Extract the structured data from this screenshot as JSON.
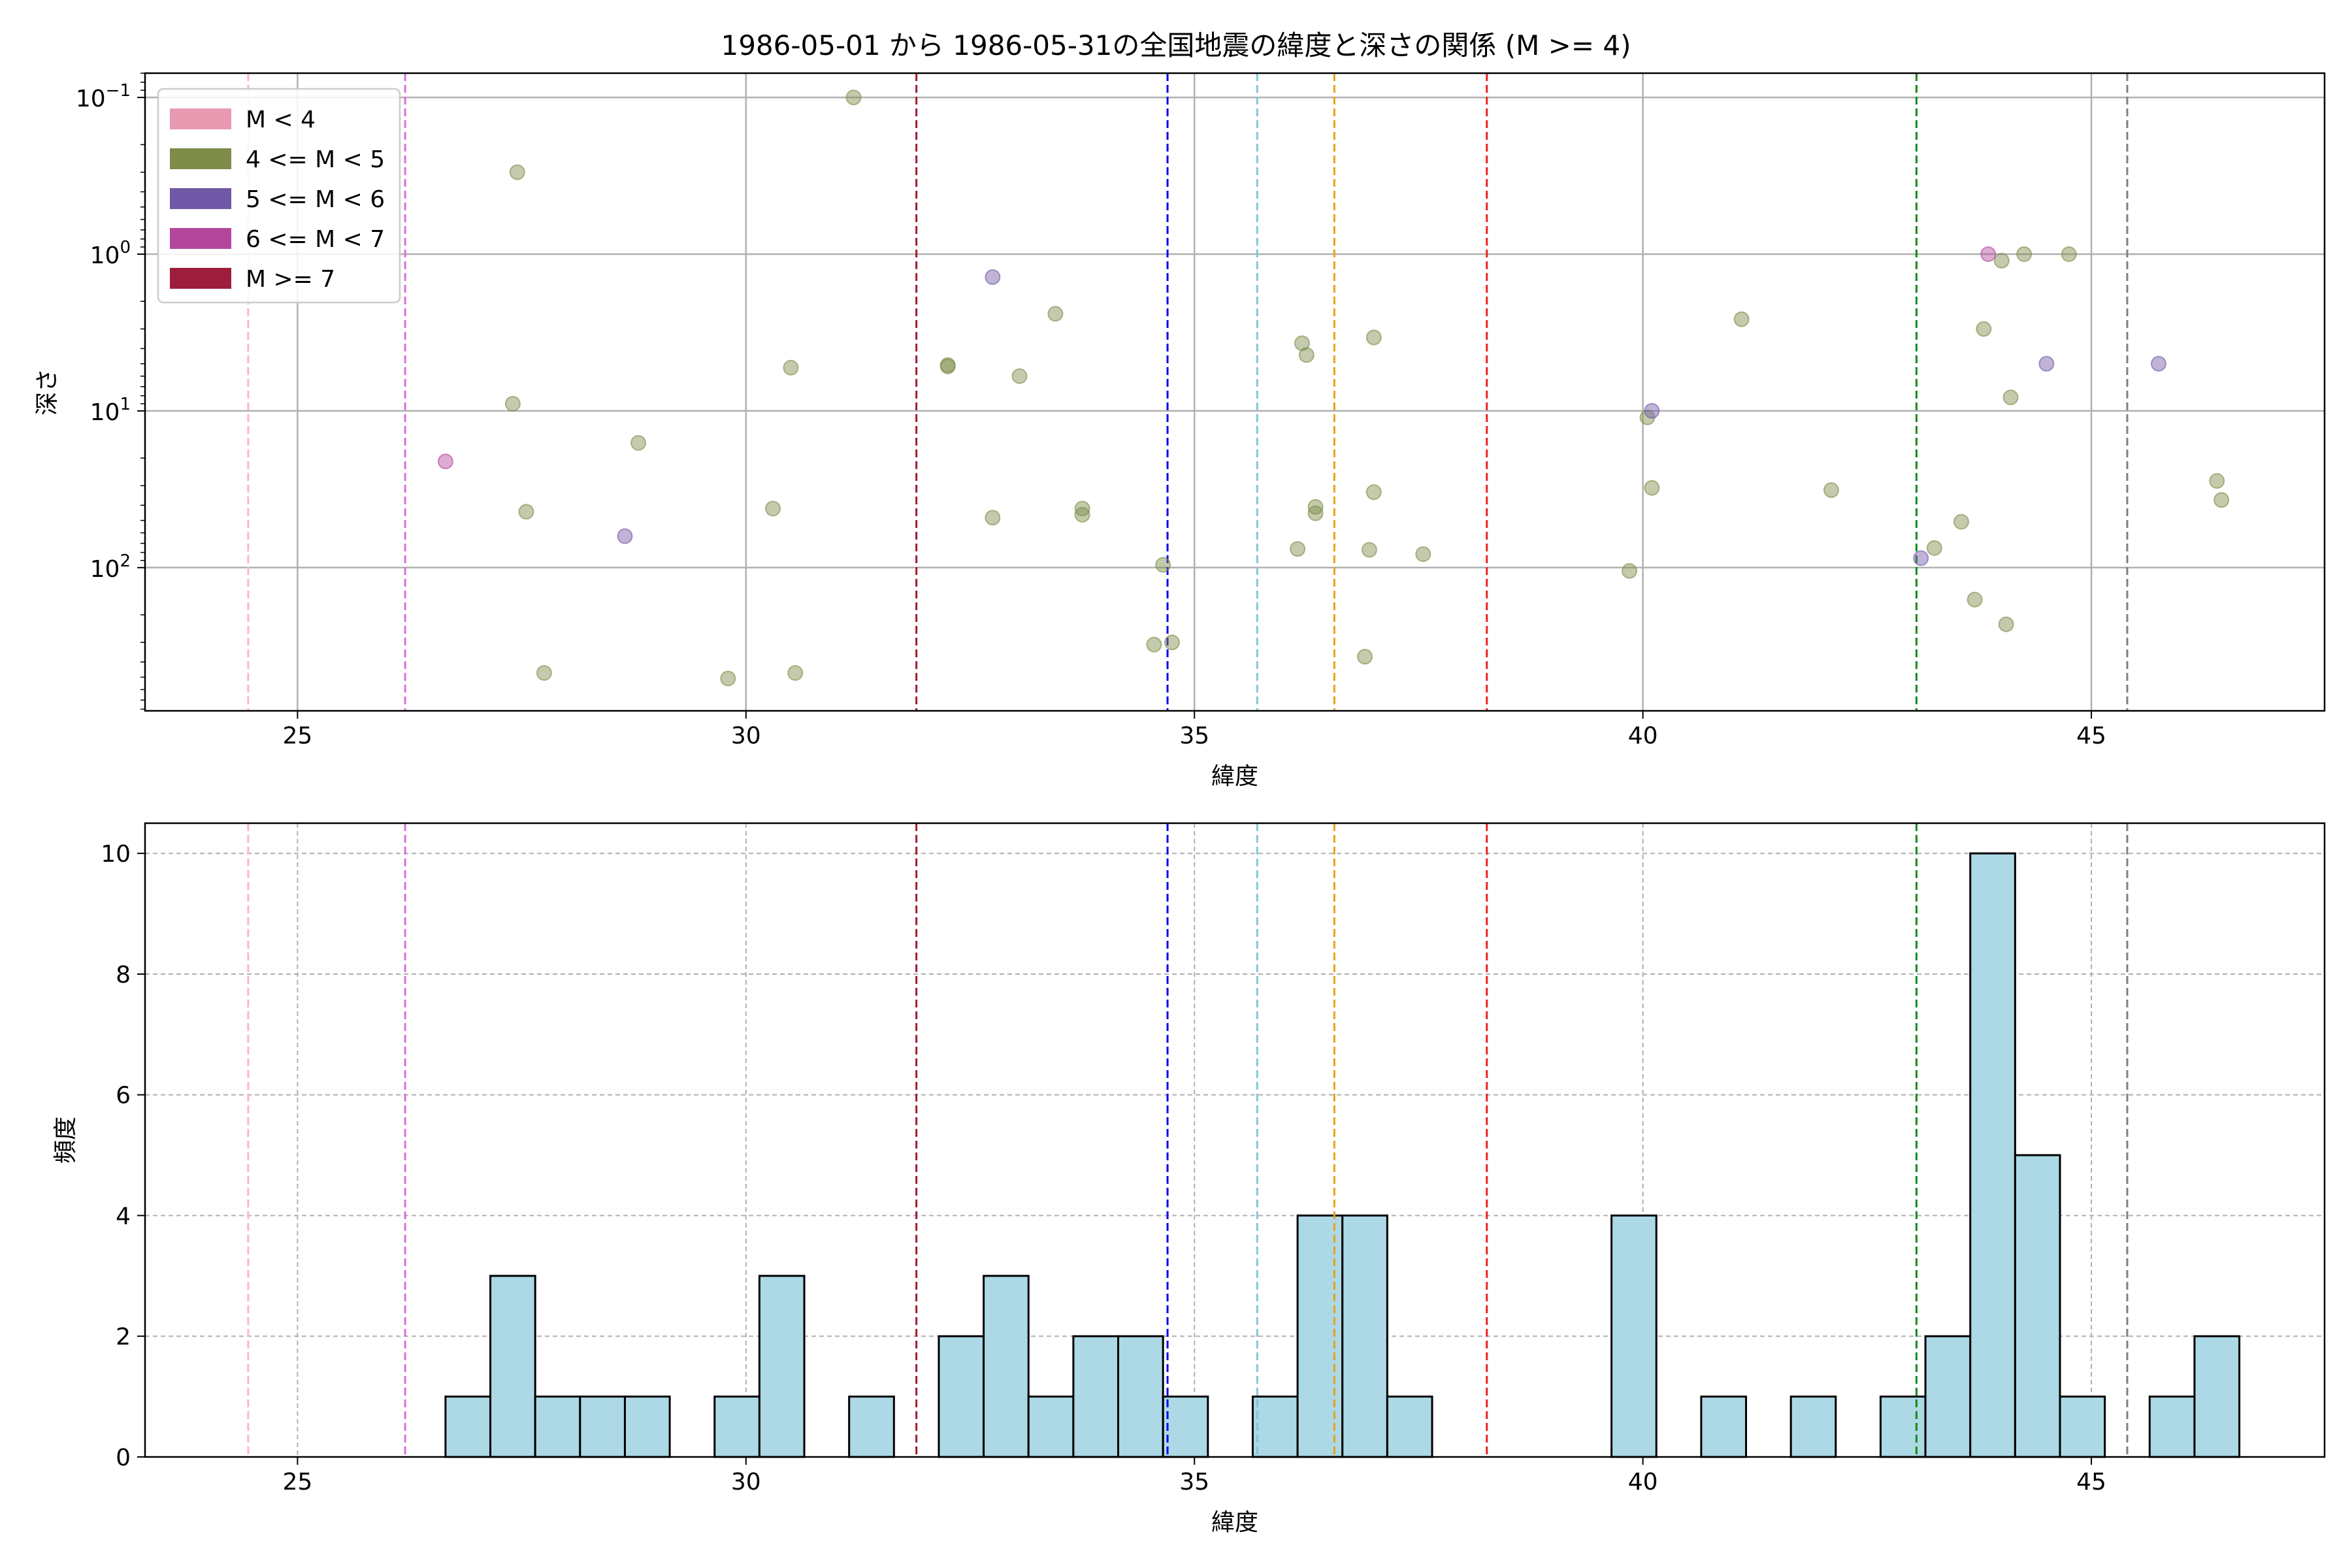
{
  "title": "1986-05-01 から 1986-05-31の全国地震の緯度と深さの関係 (M >= 4)",
  "chart_data": [
    {
      "type": "scatter",
      "xlabel": "緯度",
      "ylabel": "深さ",
      "xlim": [
        23.3,
        47.6
      ],
      "ylim": [
        0.07,
        820
      ],
      "yscale": "log",
      "y_inverted": true,
      "x_ticks": [
        25,
        30,
        35,
        40,
        45
      ],
      "y_ticks": [
        {
          "value": 0.1,
          "label": "10",
          "exp": "−1"
        },
        {
          "value": 1,
          "label": "10",
          "exp": "0"
        },
        {
          "value": 10,
          "label": "10",
          "exp": "1"
        },
        {
          "value": 100,
          "label": "10",
          "exp": "2"
        }
      ],
      "grid": true,
      "legend_position": "upper left",
      "legend": [
        {
          "label": "M < 4",
          "color": "#e899b2"
        },
        {
          "label": "4 <= M < 5",
          "color": "#7d8c48"
        },
        {
          "label": "5 <= M < 6",
          "color": "#7058a6"
        },
        {
          "label": "6 <= M < 7",
          "color": "#b3479b"
        },
        {
          "label": "M >= 7",
          "color": "#9e1c3c"
        }
      ],
      "vlines": [
        {
          "x": 24.45,
          "color": "#ffb6c1"
        },
        {
          "x": 26.2,
          "color": "#da70d6"
        },
        {
          "x": 31.9,
          "color": "#a01c30"
        },
        {
          "x": 34.7,
          "color": "#0000ee"
        },
        {
          "x": 35.7,
          "color": "#80c8d8"
        },
        {
          "x": 36.56,
          "color": "#e8a317"
        },
        {
          "x": 38.26,
          "color": "#ee2222"
        },
        {
          "x": 43.05,
          "color": "#138a13"
        },
        {
          "x": 45.4,
          "color": "#808080"
        }
      ],
      "series": [
        {
          "magnitude_class": "4 <= M < 5",
          "color": "#7d8c48",
          "points": [
            [
              27.4,
              9
            ],
            [
              27.45,
              0.3
            ],
            [
              27.55,
              44
            ],
            [
              27.75,
              470
            ],
            [
              28.8,
              16
            ],
            [
              29.8,
              510
            ],
            [
              30.3,
              42
            ],
            [
              30.5,
              5.3
            ],
            [
              30.55,
              470
            ],
            [
              31.2,
              0.1
            ],
            [
              32.25,
              5.1
            ],
            [
              32.25,
              5.2
            ],
            [
              32.75,
              48
            ],
            [
              33.05,
              6
            ],
            [
              33.45,
              2.4
            ],
            [
              33.75,
              42
            ],
            [
              33.75,
              46
            ],
            [
              34.55,
              310
            ],
            [
              34.65,
              96
            ],
            [
              34.75,
              300
            ],
            [
              36.15,
              76
            ],
            [
              36.2,
              3.7
            ],
            [
              36.25,
              4.4
            ],
            [
              36.35,
              41
            ],
            [
              36.35,
              45
            ],
            [
              36.9,
              370
            ],
            [
              36.95,
              77
            ],
            [
              37.0,
              3.4
            ],
            [
              37.0,
              33
            ],
            [
              37.55,
              82
            ],
            [
              39.85,
              105
            ],
            [
              40.05,
              11
            ],
            [
              40.1,
              31
            ],
            [
              41.1,
              2.6
            ],
            [
              42.1,
              32
            ],
            [
              43.25,
              75
            ],
            [
              43.55,
              51
            ],
            [
              43.7,
              160
            ],
            [
              43.8,
              3
            ],
            [
              44.0,
              1.1
            ],
            [
              44.05,
              230
            ],
            [
              44.1,
              8.2
            ],
            [
              44.25,
              1.0
            ],
            [
              44.75,
              1.0
            ],
            [
              46.4,
              28
            ],
            [
              46.45,
              37
            ]
          ]
        },
        {
          "magnitude_class": "5 <= M < 6",
          "color": "#7058a6",
          "points": [
            [
              28.65,
              63
            ],
            [
              32.75,
              1.4
            ],
            [
              40.1,
              10
            ],
            [
              43.1,
              87
            ],
            [
              44.5,
              5
            ],
            [
              45.75,
              5
            ]
          ]
        },
        {
          "magnitude_class": "6 <= M < 7",
          "color": "#b3479b",
          "points": [
            [
              26.65,
              21
            ],
            [
              43.85,
              1.0
            ]
          ]
        }
      ]
    },
    {
      "type": "bar",
      "xlabel": "緯度",
      "ylabel": "頻度",
      "xlim": [
        23.3,
        47.6
      ],
      "ylim": [
        0,
        10.5
      ],
      "x_ticks": [
        25,
        30,
        35,
        40,
        45
      ],
      "y_ticks": [
        0,
        2,
        4,
        6,
        8,
        10
      ],
      "grid": true,
      "bar_color": "#add8e6",
      "bin_width": 0.5,
      "bins": [
        {
          "start": 26.65,
          "count": 1
        },
        {
          "start": 27.15,
          "count": 3
        },
        {
          "start": 27.65,
          "count": 1
        },
        {
          "start": 28.15,
          "count": 1
        },
        {
          "start": 28.65,
          "count": 1
        },
        {
          "start": 29.65,
          "count": 1
        },
        {
          "start": 30.15,
          "count": 3
        },
        {
          "start": 31.15,
          "count": 1
        },
        {
          "start": 32.15,
          "count": 2
        },
        {
          "start": 32.65,
          "count": 3
        },
        {
          "start": 33.15,
          "count": 1
        },
        {
          "start": 33.65,
          "count": 2
        },
        {
          "start": 34.15,
          "count": 2
        },
        {
          "start": 34.65,
          "count": 1
        },
        {
          "start": 35.65,
          "count": 1
        },
        {
          "start": 36.15,
          "count": 4
        },
        {
          "start": 36.65,
          "count": 4
        },
        {
          "start": 37.15,
          "count": 1
        },
        {
          "start": 39.65,
          "count": 4
        },
        {
          "start": 40.65,
          "count": 1
        },
        {
          "start": 41.65,
          "count": 1
        },
        {
          "start": 42.65,
          "count": 1
        },
        {
          "start": 43.15,
          "count": 2
        },
        {
          "start": 43.65,
          "count": 10
        },
        {
          "start": 44.15,
          "count": 5
        },
        {
          "start": 44.65,
          "count": 1
        },
        {
          "start": 45.65,
          "count": 1
        },
        {
          "start": 46.15,
          "count": 2
        }
      ],
      "vlines": [
        {
          "x": 24.45,
          "color": "#ffb6c1"
        },
        {
          "x": 26.2,
          "color": "#da70d6"
        },
        {
          "x": 31.9,
          "color": "#a01c30"
        },
        {
          "x": 34.7,
          "color": "#0000ee"
        },
        {
          "x": 35.7,
          "color": "#80c8d8"
        },
        {
          "x": 36.56,
          "color": "#e8a317"
        },
        {
          "x": 38.26,
          "color": "#ee2222"
        },
        {
          "x": 43.05,
          "color": "#138a13"
        },
        {
          "x": 45.4,
          "color": "#808080"
        }
      ]
    }
  ]
}
